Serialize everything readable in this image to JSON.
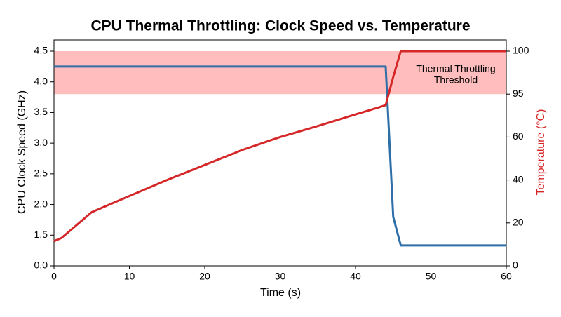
{
  "chart_data": {
    "type": "line",
    "title": "CPU Thermal Throttling: Clock Speed vs. Temperature",
    "x_label": "Time (s)",
    "y_label": "CPU Clock Speed (GHz)",
    "y2_label": "Temperature (°C)",
    "x": [
      0,
      1,
      5,
      10,
      15,
      20,
      25,
      30,
      35,
      40,
      43,
      44,
      45,
      46,
      50,
      55,
      60
    ],
    "xlim": [
      0,
      60
    ],
    "xticks": [
      0,
      10,
      20,
      30,
      40,
      50,
      60
    ],
    "ylim": [
      0,
      4.5
    ],
    "yticks": [
      {
        "value": 0,
        "label": "0.0"
      },
      1.5,
      {
        "value": 2,
        "label": "2.0"
      },
      2.5,
      {
        "value": 3,
        "label": "3.0"
      },
      3.5,
      {
        "value": 4,
        "label": "4.0"
      },
      4.5
    ],
    "y2lim": [
      0,
      100
    ],
    "y2ticks": [
      0,
      20,
      40,
      60,
      95,
      100
    ],
    "series": [
      {
        "name": "CPU Clock Speed (GHz)",
        "color": "#2e6fa8",
        "values": [
          4.25,
          4.25,
          4.25,
          4.25,
          4.25,
          4.25,
          4.25,
          4.25,
          4.25,
          4.25,
          4.25,
          4.25,
          1.8,
          1.0,
          1.0,
          1.0,
          1.0
        ]
      },
      {
        "name": "Temperature (°C)",
        "color": "#d62728",
        "axis": "y2",
        "values": [
          11.5,
          13,
          25,
          32.5,
          40,
          47,
          54,
          60,
          69,
          78.5,
          84,
          86,
          97,
          100,
          100,
          100,
          100
        ]
      }
    ],
    "band": {
      "axis": "y2",
      "from": 95,
      "to": 100,
      "color": "#ffbdbd",
      "label_lines": [
        "Thermal Throttling",
        "Threshold"
      ]
    }
  }
}
